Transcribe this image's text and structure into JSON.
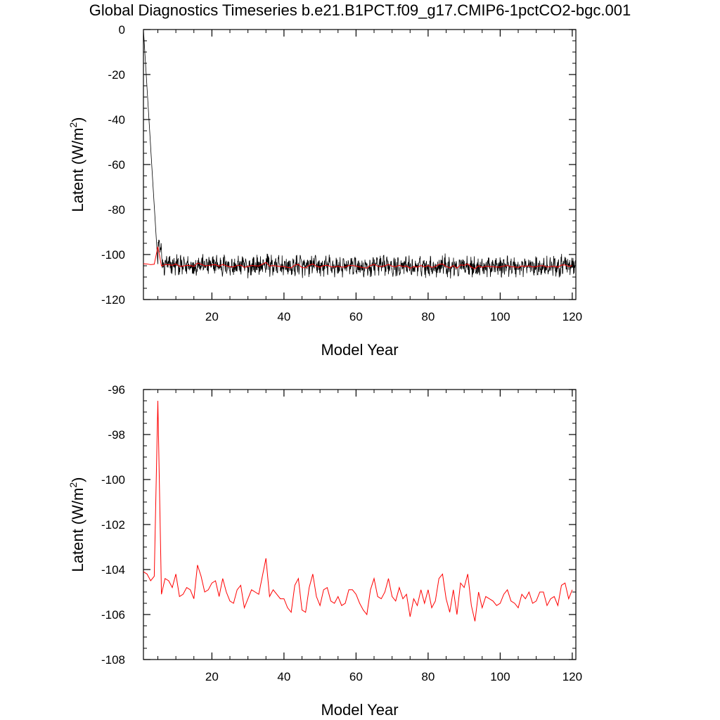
{
  "title": "Global Diagnostics Timeseries b.e21.B1PCT.f09_g17.CMIP6-1pctCO2-bgc.001",
  "colors": {
    "monthly": "#000000",
    "annual": "#ff0000",
    "axis": "#000000"
  },
  "chart_data": [
    {
      "type": "line",
      "xlabel": "Model Year",
      "ylabel_main": "Latent (W/m",
      "ylabel_sup": "2",
      "ylabel_end": ")",
      "xlim": [
        1,
        121
      ],
      "ylim": [
        -120,
        0
      ],
      "xticks": [
        20,
        40,
        60,
        80,
        100,
        120
      ],
      "yticks": [
        0,
        -20,
        -40,
        -60,
        -80,
        -100,
        -120
      ],
      "series": [
        {
          "style": "monthly",
          "x_start": 1,
          "x_step": 0.0833,
          "count": 1440,
          "start_value": 0,
          "ramp_end_x": 5,
          "mean": -105,
          "amplitude": 3.5
        },
        {
          "style": "annual",
          "x_start": 1,
          "x_step": 1,
          "ref": "annual_means"
        }
      ]
    },
    {
      "type": "line",
      "xlabel": "Model Year",
      "ylabel_main": "Latent (W/m",
      "ylabel_sup": "2",
      "ylabel_end": ")",
      "xlim": [
        1,
        121
      ],
      "ylim": [
        -108,
        -96
      ],
      "xticks": [
        20,
        40,
        60,
        80,
        100,
        120
      ],
      "yticks": [
        -96,
        -98,
        -100,
        -102,
        -104,
        -106,
        -108
      ],
      "series": [
        {
          "style": "annual",
          "x_start": 1,
          "x_step": 1,
          "ref": "annual_means"
        }
      ]
    }
  ],
  "annual_means": [
    -104.1,
    -104.2,
    -104.5,
    -104.3,
    -96.5,
    -105.1,
    -104.4,
    -104.5,
    -104.8,
    -104.2,
    -105.2,
    -105.1,
    -104.8,
    -104.9,
    -105.3,
    -103.8,
    -104.3,
    -105.0,
    -104.9,
    -104.6,
    -104.5,
    -105.2,
    -104.4,
    -105.0,
    -105.4,
    -105.5,
    -104.9,
    -104.7,
    -105.7,
    -105.3,
    -104.9,
    -105.0,
    -105.1,
    -104.3,
    -103.5,
    -105.2,
    -104.9,
    -105.1,
    -105.3,
    -105.3,
    -105.7,
    -105.9,
    -104.7,
    -104.4,
    -105.8,
    -105.9,
    -104.8,
    -104.2,
    -105.2,
    -105.6,
    -104.9,
    -104.8,
    -105.4,
    -105.5,
    -105.2,
    -105.6,
    -105.5,
    -104.9,
    -104.9,
    -105.1,
    -105.5,
    -105.8,
    -106.0,
    -104.9,
    -104.4,
    -105.2,
    -105.3,
    -105.0,
    -104.4,
    -105.2,
    -105.4,
    -104.8,
    -105.3,
    -105.1,
    -106.1,
    -105.3,
    -105.6,
    -104.9,
    -105.5,
    -104.9,
    -105.7,
    -105.4,
    -104.4,
    -104.2,
    -105.3,
    -105.9,
    -104.9,
    -106.0,
    -104.6,
    -104.8,
    -104.2,
    -105.6,
    -106.3,
    -105.0,
    -105.7,
    -105.2,
    -105.3,
    -105.4,
    -105.6,
    -105.5,
    -105.1,
    -104.9,
    -105.4,
    -105.5,
    -105.7,
    -105.1,
    -105.3,
    -105.0,
    -105.5,
    -105.4,
    -105.0,
    -105.0,
    -105.6,
    -105.3,
    -105.2,
    -105.6,
    -104.7,
    -104.6,
    -105.3,
    -104.9
  ]
}
